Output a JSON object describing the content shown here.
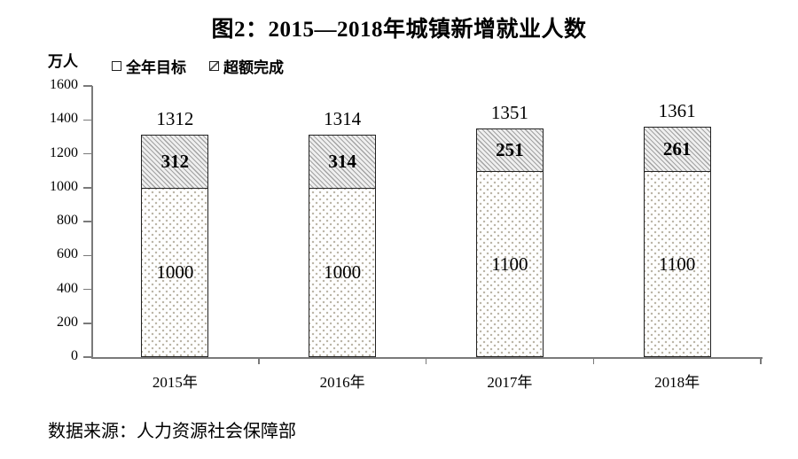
{
  "figure": {
    "title": "图2：2015—2018年城镇新增就业人数",
    "y_unit_label": "万人",
    "source_note": "数据来源：人力资源社会保障部"
  },
  "legend": {
    "items": [
      {
        "label": "全年目标",
        "pattern": "dots"
      },
      {
        "label": "超额完成",
        "pattern": "diagonal-hatch"
      }
    ]
  },
  "colors": {
    "text": "#000000",
    "axis_line": "#7a7a7a",
    "bar_border": "#222222",
    "hatch_background": "#efefef",
    "hatch_line": "#a3a3a3",
    "dot_color": "#b9b3a4"
  },
  "chart_data": {
    "type": "bar",
    "stacked": true,
    "title": "图2：2015—2018年城镇新增就业人数",
    "categories": [
      "2015年",
      "2016年",
      "2017年",
      "2018年"
    ],
    "series": [
      {
        "name": "全年目标",
        "values": [
          1000,
          1000,
          1100,
          1100
        ],
        "pattern": "dots"
      },
      {
        "name": "超额完成",
        "values": [
          312,
          314,
          251,
          261
        ],
        "pattern": "diagonal-hatch"
      }
    ],
    "totals": [
      1312,
      1314,
      1351,
      1361
    ],
    "xlabel": "",
    "ylabel": "万人",
    "ylim": [
      0,
      1600
    ],
    "yticks": [
      0,
      200,
      400,
      600,
      800,
      1000,
      1200,
      1400,
      1600
    ],
    "grid": false,
    "legend_position": "top-left"
  }
}
